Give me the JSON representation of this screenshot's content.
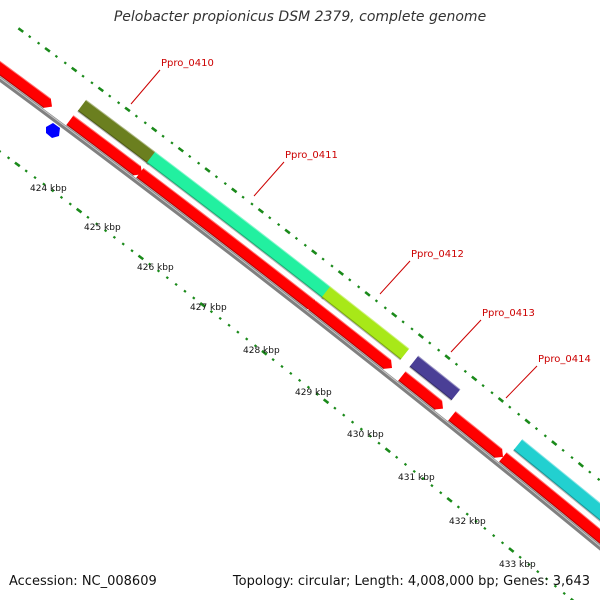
{
  "title": "Pelobacter propionicus DSM 2379, complete genome",
  "accession": "Accession: NC_008609",
  "summary": "Topology: circular; Length: 4,008,000 bp; Genes: 3,643",
  "genes": [
    {
      "id": "Ppro_0410",
      "label": "Ppro_0410"
    },
    {
      "id": "Ppro_0411",
      "label": "Ppro_0411"
    },
    {
      "id": "Ppro_0412",
      "label": "Ppro_0412"
    },
    {
      "id": "Ppro_0413",
      "label": "Ppro_0413"
    },
    {
      "id": "Ppro_0414",
      "label": "Ppro_0414"
    }
  ],
  "scale_ticks": [
    "424 kbp",
    "425 kbp",
    "426 kbp",
    "427 kbp",
    "428 kbp",
    "429 kbp",
    "430 kbp",
    "431 kbp",
    "432 kbp",
    "433 kbp"
  ],
  "colors": {
    "cds_red": "#ff0000",
    "backbone": "#808080",
    "scale_dots": "#1a8a1a",
    "label_red": "#cc0000",
    "olive": "#6b7f1f",
    "spring_green": "#22f0a0",
    "yellow_green": "#a8e818",
    "slate_blue": "#4a3f96",
    "cyan": "#22d0d0",
    "blue_marker": "#0000ff"
  }
}
